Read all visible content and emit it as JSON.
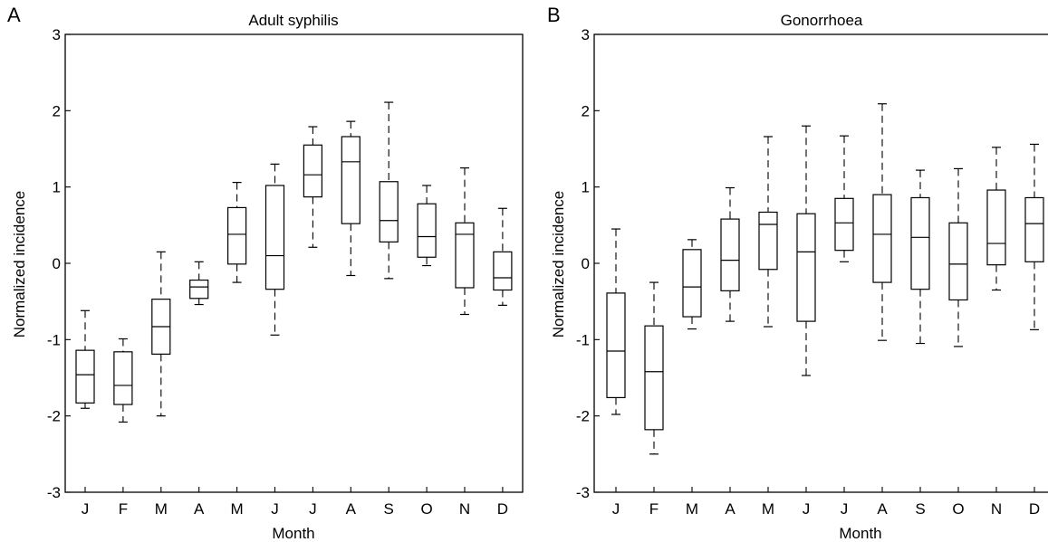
{
  "chart_data": [
    {
      "type": "box",
      "panel_label": "A",
      "title": "Adult syphilis",
      "xlabel": "Month",
      "ylabel": "Normalized incidence",
      "ylim": [
        -3,
        3
      ],
      "yticks": [
        -3,
        -2,
        -1,
        0,
        1,
        2,
        3
      ],
      "categories": [
        "J",
        "F",
        "M",
        "A",
        "M",
        "J",
        "J",
        "A",
        "S",
        "O",
        "N",
        "D"
      ],
      "boxes": [
        {
          "min": -1.9,
          "q1": -1.83,
          "median": -1.46,
          "q3": -1.14,
          "max": -0.62
        },
        {
          "min": -2.08,
          "q1": -1.85,
          "median": -1.6,
          "q3": -1.16,
          "max": -0.99
        },
        {
          "min": -2.0,
          "q1": -1.19,
          "median": -0.83,
          "q3": -0.47,
          "max": 0.15
        },
        {
          "min": -0.54,
          "q1": -0.46,
          "median": -0.31,
          "q3": -0.22,
          "max": 0.02
        },
        {
          "min": -0.25,
          "q1": -0.01,
          "median": 0.38,
          "q3": 0.73,
          "max": 1.06
        },
        {
          "min": -0.94,
          "q1": -0.34,
          "median": 0.1,
          "q3": 1.02,
          "max": 1.3
        },
        {
          "min": 0.21,
          "q1": 0.87,
          "median": 1.16,
          "q3": 1.55,
          "max": 1.79
        },
        {
          "min": -0.16,
          "q1": 0.52,
          "median": 1.33,
          "q3": 1.66,
          "max": 1.86
        },
        {
          "min": -0.2,
          "q1": 0.28,
          "median": 0.56,
          "q3": 1.07,
          "max": 2.11
        },
        {
          "min": -0.03,
          "q1": 0.08,
          "median": 0.35,
          "q3": 0.78,
          "max": 1.02
        },
        {
          "min": -0.67,
          "q1": -0.32,
          "median": 0.38,
          "q3": 0.53,
          "max": 1.25
        },
        {
          "min": -0.55,
          "q1": -0.35,
          "median": -0.19,
          "q3": 0.15,
          "max": 0.72
        }
      ]
    },
    {
      "type": "box",
      "panel_label": "B",
      "title": "Gonorrhoea",
      "xlabel": "Month",
      "ylabel": "Normalized incidence",
      "ylim": [
        -3,
        3
      ],
      "yticks": [
        -3,
        -2,
        -1,
        0,
        1,
        2,
        3
      ],
      "categories": [
        "J",
        "F",
        "M",
        "A",
        "M",
        "J",
        "J",
        "A",
        "S",
        "O",
        "N",
        "D"
      ],
      "boxes": [
        {
          "min": -1.98,
          "q1": -1.76,
          "median": -1.15,
          "q3": -0.39,
          "max": 0.45
        },
        {
          "min": -2.5,
          "q1": -2.18,
          "median": -1.42,
          "q3": -0.82,
          "max": -0.25
        },
        {
          "min": -0.86,
          "q1": -0.7,
          "median": -0.31,
          "q3": 0.18,
          "max": 0.31
        },
        {
          "min": -0.76,
          "q1": -0.36,
          "median": 0.04,
          "q3": 0.58,
          "max": 0.99
        },
        {
          "min": -0.83,
          "q1": -0.08,
          "median": 0.51,
          "q3": 0.67,
          "max": 1.66
        },
        {
          "min": -1.47,
          "q1": -0.76,
          "median": 0.15,
          "q3": 0.65,
          "max": 1.8
        },
        {
          "min": 0.02,
          "q1": 0.17,
          "median": 0.53,
          "q3": 0.85,
          "max": 1.67
        },
        {
          "min": -1.01,
          "q1": -0.25,
          "median": 0.38,
          "q3": 0.9,
          "max": 2.09
        },
        {
          "min": -1.05,
          "q1": -0.34,
          "median": 0.34,
          "q3": 0.86,
          "max": 1.22
        },
        {
          "min": -1.09,
          "q1": -0.48,
          "median": -0.01,
          "q3": 0.53,
          "max": 1.24
        },
        {
          "min": -0.35,
          "q1": -0.02,
          "median": 0.26,
          "q3": 0.96,
          "max": 1.52
        },
        {
          "min": -0.87,
          "q1": 0.02,
          "median": 0.52,
          "q3": 0.86,
          "max": 1.56
        }
      ]
    }
  ]
}
